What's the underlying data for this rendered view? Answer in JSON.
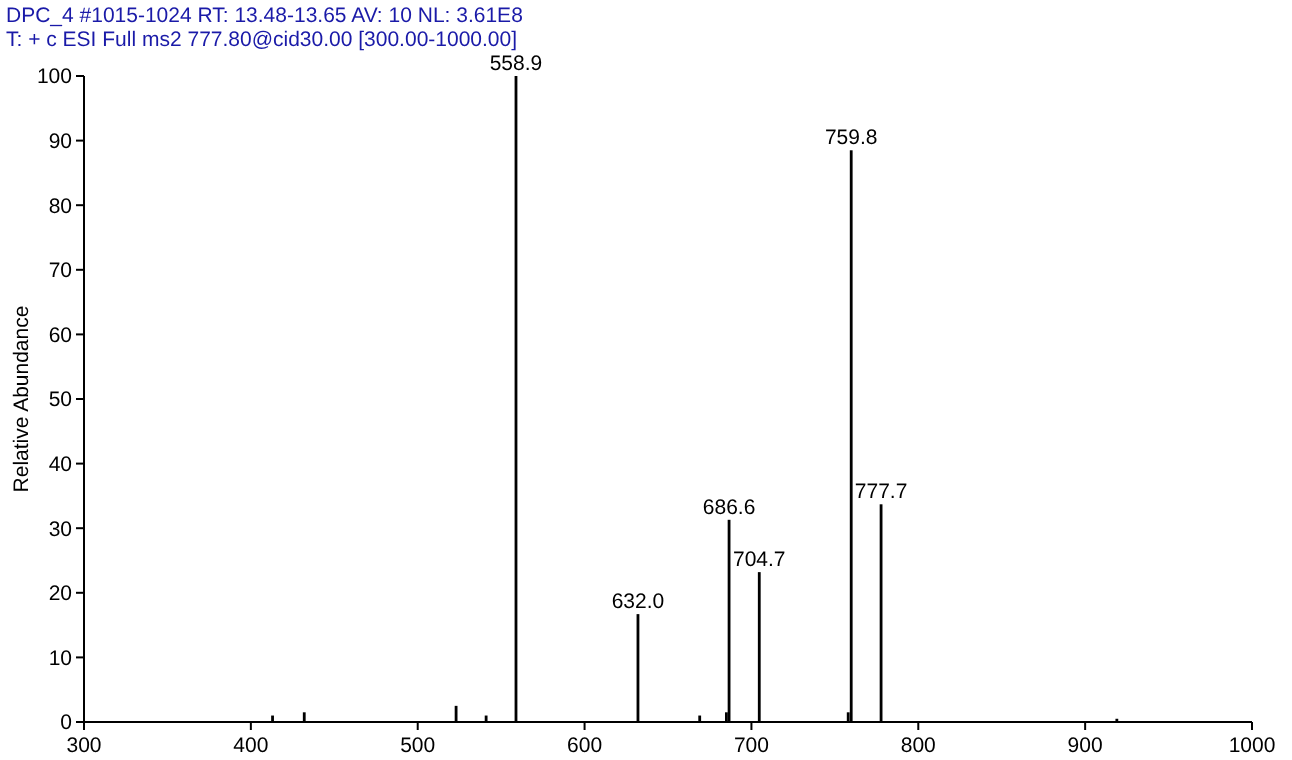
{
  "chart_data": {
    "type": "bar",
    "title": "DPC_4 #1015-1024   RT: 13.48-13.65   AV: 10   NL: 3.61E8",
    "subtitle": "T: + c ESI Full ms2 777.80@cid30.00 [300.00-1000.00]",
    "ylabel": "Relative Abundance",
    "x": [
      413,
      432,
      523,
      541,
      558.9,
      632.0,
      669,
      685,
      686.6,
      704.7,
      758,
      759.8,
      777.7,
      919
    ],
    "values": [
      1,
      1.5,
      2.5,
      1,
      100,
      16.7,
      1,
      1.5,
      31.3,
      23.2,
      1.5,
      88.5,
      33.7,
      0.5
    ],
    "annotations": [
      {
        "text": "558.9",
        "x": 558.9,
        "y": 100
      },
      {
        "text": "632.0",
        "x": 632.0,
        "y": 16.7
      },
      {
        "text": "686.6",
        "x": 686.6,
        "y": 31.3
      },
      {
        "text": "704.7",
        "x": 704.7,
        "y": 23.2
      },
      {
        "text": "759.8",
        "x": 759.8,
        "y": 88.5
      },
      {
        "text": "777.7",
        "x": 777.7,
        "y": 33.7
      }
    ],
    "color": "#000000",
    "xlim": [
      300,
      1000
    ],
    "xticks": [
      300,
      400,
      500,
      600,
      700,
      800,
      900,
      1000
    ],
    "ylim": [
      0,
      100
    ],
    "yticks": [
      0,
      10,
      20,
      30,
      40,
      50,
      60,
      70,
      80,
      90,
      100
    ],
    "grid": false
  }
}
